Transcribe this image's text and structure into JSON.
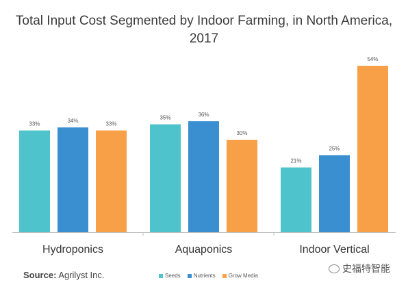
{
  "chart_data": {
    "type": "bar",
    "title": "Total Input Cost Segmented by Indoor Farming, in North America, 2017",
    "categories": [
      "Hydroponics",
      "Aquaponics",
      "Indoor Vertical"
    ],
    "series": [
      {
        "name": "Seeds",
        "color": "#4ec3cb",
        "values": [
          33,
          35,
          21
        ],
        "labels": [
          "33%",
          "35%",
          "21%"
        ]
      },
      {
        "name": "Nutrients",
        "color": "#3a8fd1",
        "values": [
          34,
          36,
          25
        ],
        "labels": [
          "34%",
          "36%",
          "25%"
        ]
      },
      {
        "name": "Grow Media",
        "color": "#f7a047",
        "values": [
          33,
          30,
          54
        ],
        "labels": [
          "33%",
          "30%",
          "54%"
        ]
      }
    ],
    "ylim": [
      0,
      54
    ],
    "grid": false,
    "legend_position": "bottom"
  },
  "source": {
    "label": "Source:",
    "text": "Agrilyst Inc."
  },
  "watermark": {
    "text": "史福特智能"
  }
}
